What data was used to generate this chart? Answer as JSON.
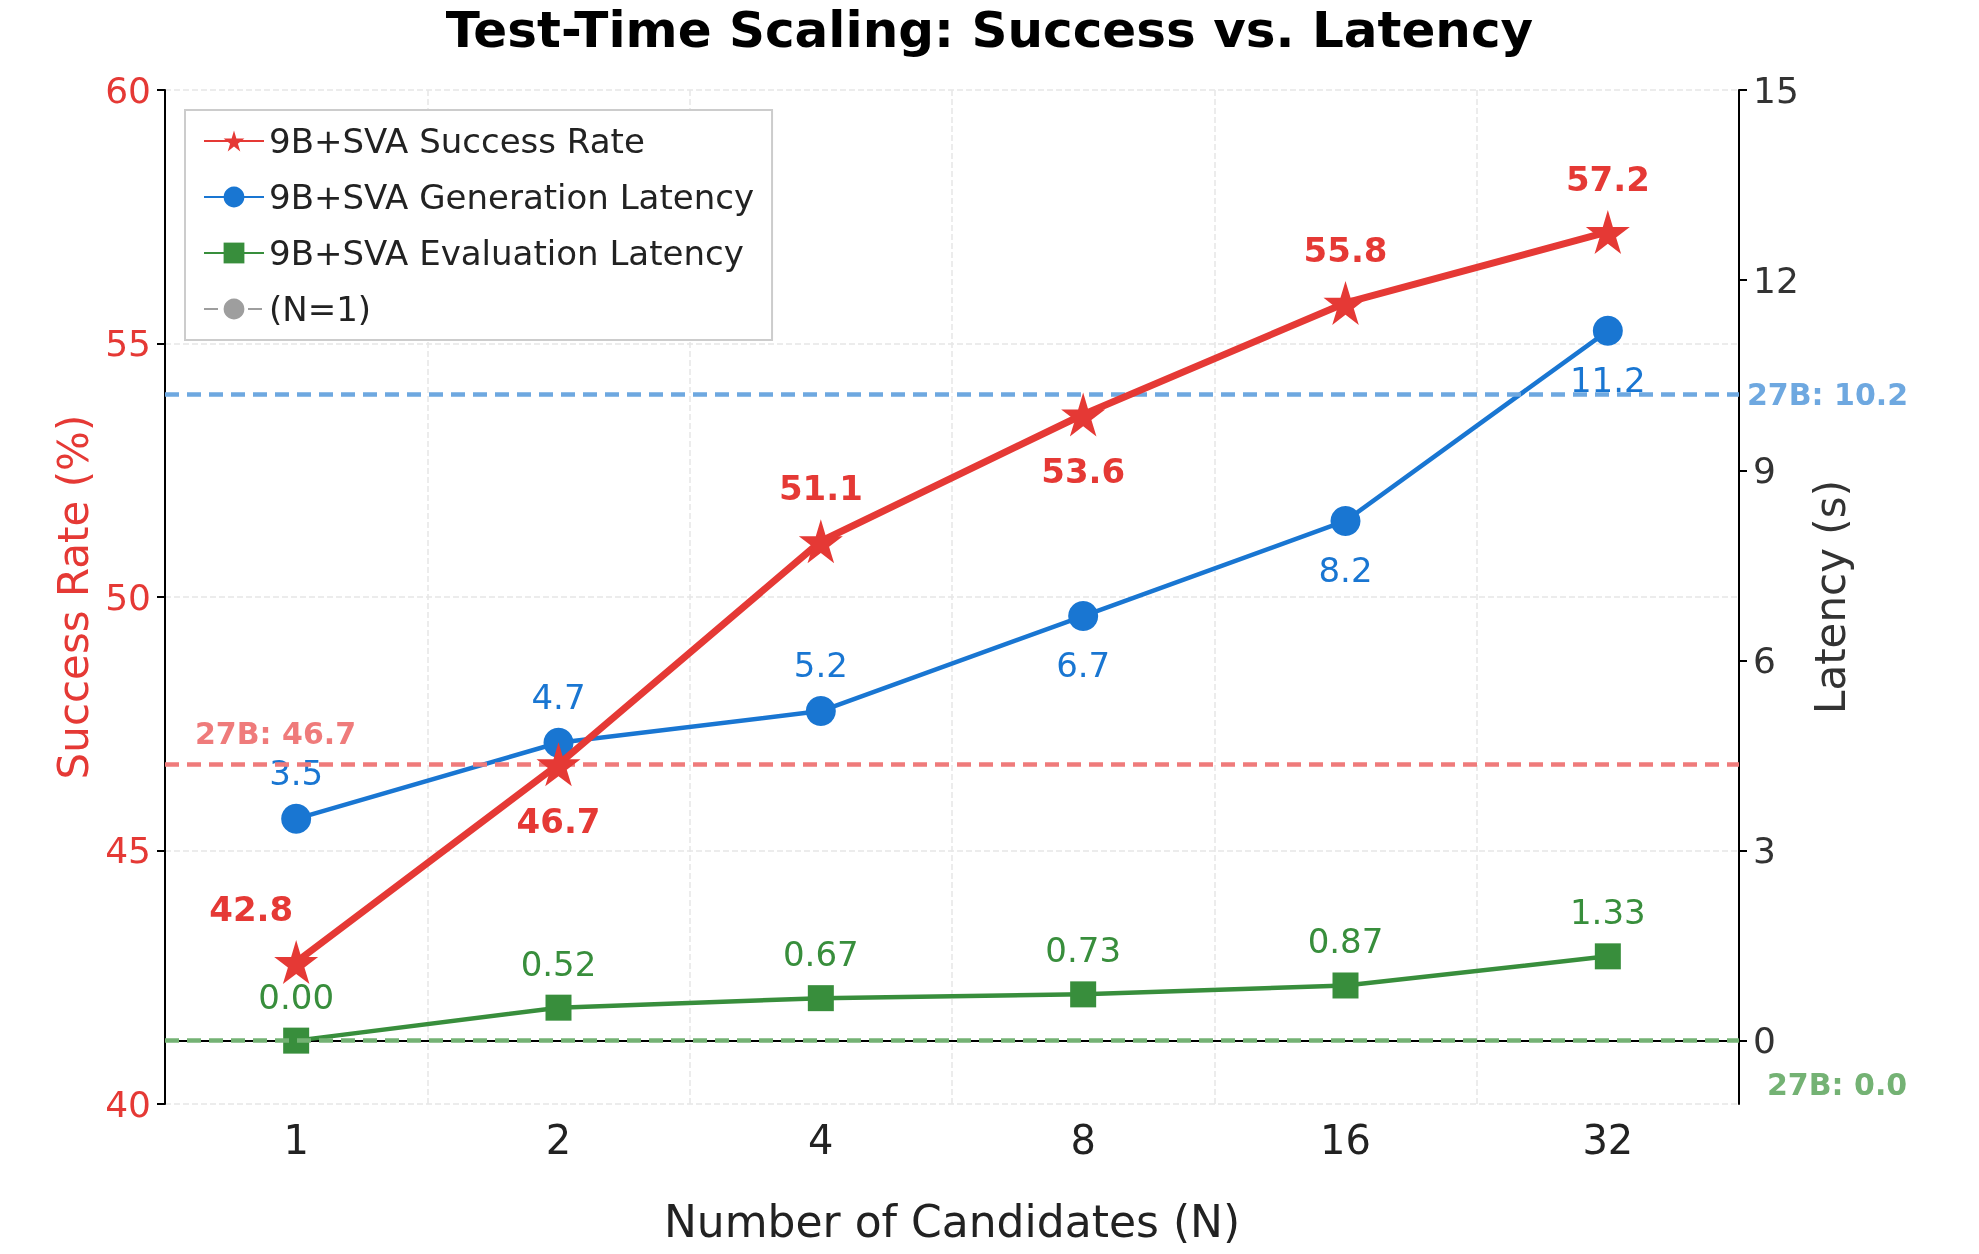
{
  "chart_data": {
    "type": "line",
    "title": "Test-Time Scaling: Success vs. Latency",
    "xlabel": "Number of Candidates (N)",
    "ylabel": "Success Rate (%)",
    "y2label": "Latency (s)",
    "categories": [
      "1",
      "2",
      "4",
      "8",
      "16",
      "32"
    ],
    "series": [
      {
        "name": "9B+SVA Success Rate",
        "color": "#e53935",
        "marker": "star",
        "values": [
          42.8,
          46.7,
          51.1,
          53.6,
          55.8,
          57.2
        ],
        "value_labels": [
          "42.8",
          "46.7",
          "51.1",
          "53.6",
          "55.8",
          "57.2"
        ]
      },
      {
        "name": "9B+SVA Generation Latency",
        "color": "#1976d2",
        "marker": "circle",
        "axis": "y2",
        "values": [
          3.5,
          4.7,
          5.2,
          6.7,
          8.2,
          11.2
        ],
        "value_labels": [
          "3.5",
          "4.7",
          "5.2",
          "6.7",
          "8.2",
          "11.2"
        ]
      },
      {
        "name": "9B+SVA Evaluation Latency",
        "color": "#388e3c",
        "marker": "square",
        "axis": "y2",
        "values": [
          0.0,
          0.52,
          0.67,
          0.73,
          0.87,
          1.33
        ],
        "value_labels": [
          "0.00",
          "0.52",
          "0.67",
          "0.73",
          "0.87",
          "1.33"
        ]
      },
      {
        "name": "(N=1)",
        "color": "#9e9e9e",
        "marker": "none",
        "line_style": "dashed",
        "values": [
          null,
          null,
          null,
          null,
          null,
          null
        ]
      }
    ],
    "ref_lines": [
      {
        "axis": "y",
        "value": 46.7,
        "label": "27B: 46.7",
        "color": "#ef7b7b",
        "line_style": "dashed"
      },
      {
        "axis": "y2",
        "value": 10.2,
        "label": "27B: 10.2",
        "color": "#6ea8e0",
        "line_style": "dashed"
      },
      {
        "axis": "y2",
        "value": 0.0,
        "label": "27B: 0.0",
        "color": "#74b274",
        "line_style": "dashed"
      }
    ],
    "ylim": [
      40,
      60
    ],
    "yticks": [
      40,
      45,
      50,
      55,
      60
    ],
    "y2lim": [
      -1,
      15
    ],
    "y2ticks": [
      0,
      3,
      6,
      9,
      12,
      15
    ],
    "grid": true,
    "legend": "top left"
  }
}
